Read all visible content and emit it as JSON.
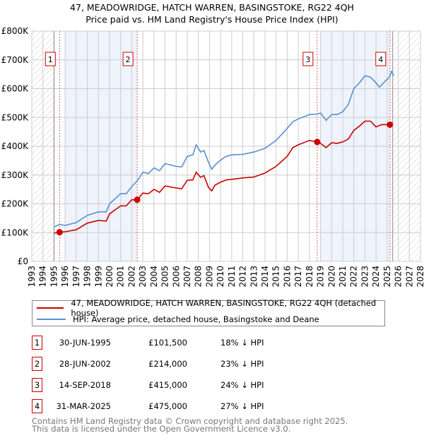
{
  "title_line1": "47, MEADOWRIDGE, HATCH WARREN, BASINGSTOKE, RG22 4QH",
  "title_line2": "Price paid vs. HM Land Registry's House Price Index (HPI)",
  "colors": {
    "price": "#cc0000",
    "hpi": "#5b8fd4",
    "shade": "#eef3fc",
    "grid": "#cccccc"
  },
  "chart_data": {
    "type": "line",
    "xlim": [
      1993,
      2028
    ],
    "ylim": [
      0,
      800000
    ],
    "x_ticks": [
      "1993",
      "1994",
      "1995",
      "1996",
      "1997",
      "1998",
      "1999",
      "2000",
      "2001",
      "2002",
      "2003",
      "2004",
      "2005",
      "2006",
      "2007",
      "2008",
      "2009",
      "2010",
      "2011",
      "2012",
      "2013",
      "2014",
      "2015",
      "2016",
      "2017",
      "2018",
      "2019",
      "2020",
      "2021",
      "2022",
      "2023",
      "2024",
      "2025",
      "2026",
      "2027",
      "2028"
    ],
    "y_ticks": [
      {
        "v": 0,
        "label": "£0"
      },
      {
        "v": 100000,
        "label": "£100K"
      },
      {
        "v": 200000,
        "label": "£200K"
      },
      {
        "v": 300000,
        "label": "£300K"
      },
      {
        "v": 400000,
        "label": "£400K"
      },
      {
        "v": 500000,
        "label": "£500K"
      },
      {
        "v": 600000,
        "label": "£600K"
      },
      {
        "v": 700000,
        "label": "£700K"
      },
      {
        "v": 800000,
        "label": "£800K"
      }
    ],
    "grid": true,
    "shaded_ranges": [
      [
        1996.0,
        2002.5
      ],
      [
        2019.0,
        2025.25
      ]
    ],
    "hatched_ranges": [
      [
        1993,
        1995
      ],
      [
        2025.5,
        2028
      ]
    ],
    "series": [
      {
        "name": "47, MEADOWRIDGE, HATCH WARREN, BASINGSTOKE, RG22 4QH (detached house)",
        "color": "#cc0000",
        "x": [
          1995,
          1995.5,
          1996,
          1997,
          1998,
          1999,
          1999.7,
          2000,
          2001,
          2001.5,
          2002,
          2002.5,
          2003,
          2003.5,
          2004,
          2004.5,
          2005,
          2006,
          2006.5,
          2007,
          2007.5,
          2007.8,
          2008.2,
          2008.5,
          2008.9,
          2009.2,
          2009.5,
          2010,
          2010.5,
          2011,
          2012,
          2013,
          2014,
          2015,
          2016,
          2016.5,
          2017,
          2018,
          2018.7,
          2019,
          2019.5,
          2020,
          2020.5,
          2021,
          2021.5,
          2022,
          2022.5,
          2023,
          2023.5,
          2024,
          2024.5,
          2025.25,
          2025.5
        ],
        "y": [
          98000,
          101500,
          103000,
          110000,
          133000,
          142000,
          140000,
          165000,
          193000,
          193000,
          214000,
          214000,
          237000,
          235000,
          250000,
          240000,
          262000,
          255000,
          252000,
          282000,
          283000,
          310000,
          292000,
          298000,
          258000,
          245000,
          265000,
          275000,
          283000,
          285000,
          290000,
          293000,
          307000,
          330000,
          365000,
          395000,
          405000,
          420000,
          415000,
          410000,
          395000,
          412000,
          410000,
          415000,
          425000,
          455000,
          470000,
          487000,
          487000,
          467000,
          475000,
          475000,
          480000
        ]
      },
      {
        "name": "HPI: Average price, detached house, Basingstoke and Deane",
        "color": "#5b8fd4",
        "x": [
          1995,
          1995.5,
          1996,
          1997,
          1998,
          1999,
          1999.7,
          2000,
          2001,
          2001.5,
          2002,
          2002.5,
          2003,
          2003.5,
          2004,
          2004.5,
          2005,
          2006,
          2006.5,
          2007,
          2007.5,
          2007.8,
          2008.2,
          2008.5,
          2008.9,
          2009.2,
          2009.5,
          2010,
          2010.5,
          2011,
          2012,
          2013,
          2014,
          2015,
          2016,
          2016.5,
          2017,
          2018,
          2018.7,
          2019,
          2019.5,
          2020,
          2020.5,
          2021,
          2021.5,
          2022,
          2022.5,
          2023,
          2023.5,
          2024,
          2024.3,
          2024.8,
          2025.2,
          2025.4,
          2025.6
        ],
        "y": [
          120000,
          128000,
          125000,
          135000,
          160000,
          172000,
          172000,
          200000,
          235000,
          235000,
          260000,
          280000,
          310000,
          305000,
          325000,
          315000,
          340000,
          330000,
          328000,
          365000,
          370000,
          405000,
          380000,
          385000,
          345000,
          320000,
          335000,
          352000,
          365000,
          370000,
          372000,
          380000,
          393000,
          420000,
          462000,
          485000,
          495000,
          510000,
          512000,
          515000,
          490000,
          510000,
          510000,
          520000,
          545000,
          600000,
          620000,
          645000,
          640000,
          620000,
          605000,
          625000,
          640000,
          660000,
          645000
        ]
      }
    ],
    "markers": [
      {
        "label": "1",
        "x": 1995.5,
        "y": 101500
      },
      {
        "label": "2",
        "x": 2002.49,
        "y": 214000
      },
      {
        "label": "3",
        "x": 2018.7,
        "y": 415000
      },
      {
        "label": "4",
        "x": 2025.25,
        "y": 475000
      }
    ]
  },
  "legend": {
    "price_label": "47, MEADOWRIDGE, HATCH WARREN, BASINGSTOKE, RG22 4QH (detached house)",
    "hpi_label": "HPI: Average price, detached house, Basingstoke and Deane"
  },
  "sales": [
    {
      "num": "1",
      "date": "30-JUN-1995",
      "price": "£101,500",
      "hpi": "18% ↓ HPI"
    },
    {
      "num": "2",
      "date": "28-JUN-2002",
      "price": "£214,000",
      "hpi": "23% ↓ HPI"
    },
    {
      "num": "3",
      "date": "14-SEP-2018",
      "price": "£415,000",
      "hpi": "24% ↓ HPI"
    },
    {
      "num": "4",
      "date": "31-MAR-2025",
      "price": "£475,000",
      "hpi": "27% ↓ HPI"
    }
  ],
  "footer": {
    "line1": "Contains HM Land Registry data © Crown copyright and database right 2025.",
    "line2": "This data is licensed under the Open Government Licence v3.0."
  }
}
